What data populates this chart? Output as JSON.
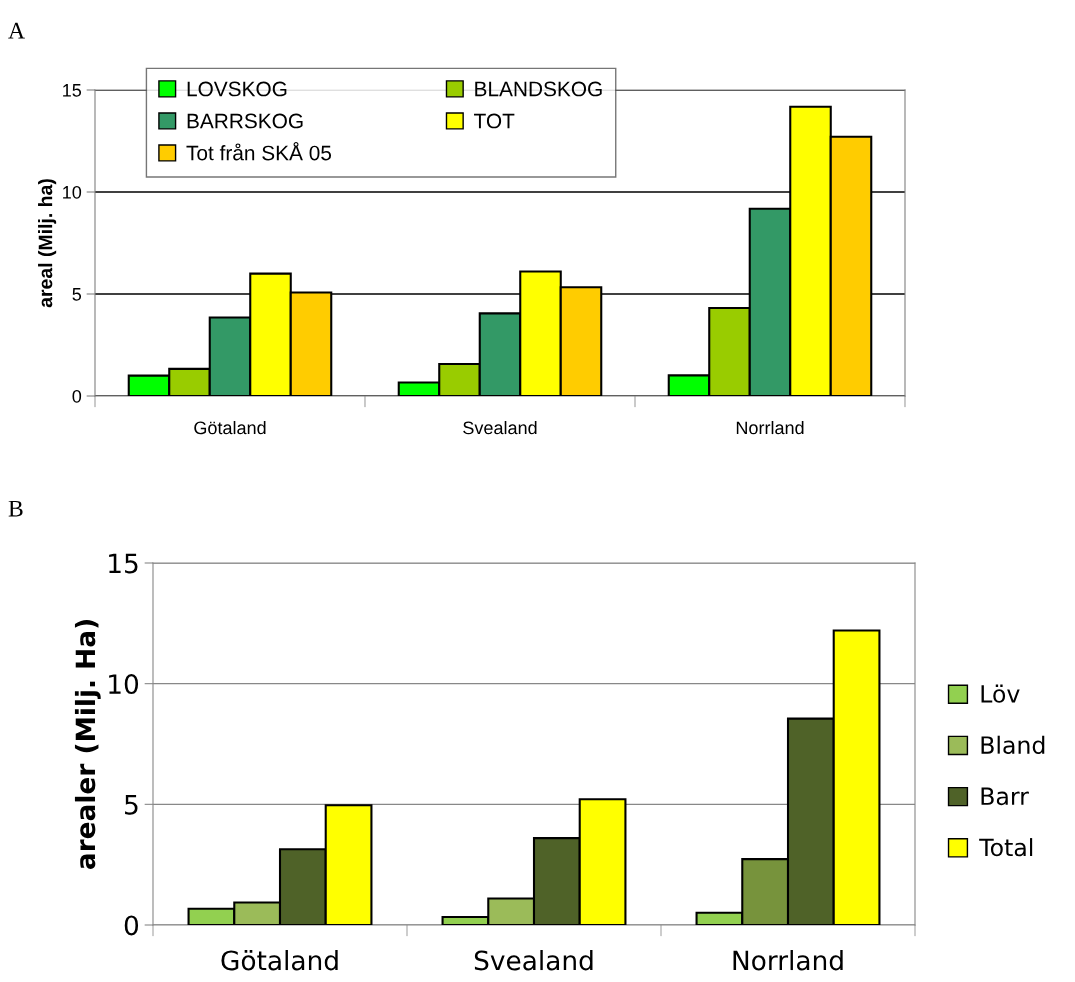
{
  "chart_data": [
    {
      "type": "bar",
      "annotations": [
        "A"
      ],
      "ylabel": "areal (Milj. ha)",
      "categories": [
        "Götaland",
        "Svealand",
        "Norrland"
      ],
      "ylim": [
        0,
        15
      ],
      "yticks": [
        0,
        5,
        10,
        15
      ],
      "grid": "y",
      "legend": "top left",
      "series": [
        {
          "name": "LOVSKOG",
          "color": "#00ff00",
          "values": [
            1.0,
            0.66,
            1.01
          ]
        },
        {
          "name": "BLANDSKOG",
          "color": "#99cc00",
          "values": [
            1.33,
            1.57,
            4.31
          ]
        },
        {
          "name": "BARRSKOG",
          "color": "#339966",
          "values": [
            3.85,
            4.05,
            9.18
          ]
        },
        {
          "name": "TOT",
          "color": "#ffff00",
          "values": [
            6.0,
            6.1,
            14.18
          ]
        },
        {
          "name": "Tot från SKÅ 05",
          "color": "#ffcc00",
          "values": [
            5.07,
            5.33,
            12.71
          ]
        }
      ]
    },
    {
      "type": "bar",
      "annotations": [
        "B"
      ],
      "ylabel": "arealer (Milj. Ha)",
      "categories": [
        "Götaland",
        "Svealand",
        "Norrland"
      ],
      "ylim": [
        0,
        15
      ],
      "yticks": [
        0,
        5,
        10,
        15
      ],
      "grid": "y",
      "legend": "right",
      "series": [
        {
          "name": "Löv",
          "color": "#92d050",
          "values": [
            0.67,
            0.33,
            0.51
          ]
        },
        {
          "name": "Bland",
          "color": "#9bbb59",
          "colors": [
            "#9bbb59",
            "#9bbb59",
            "#77933c"
          ],
          "values": [
            0.93,
            1.1,
            2.73
          ]
        },
        {
          "name": "Barr",
          "color": "#4f6228",
          "values": [
            3.14,
            3.6,
            8.55
          ]
        },
        {
          "name": "Total",
          "color": "#ffff00",
          "values": [
            4.96,
            5.21,
            12.2
          ]
        }
      ]
    }
  ]
}
